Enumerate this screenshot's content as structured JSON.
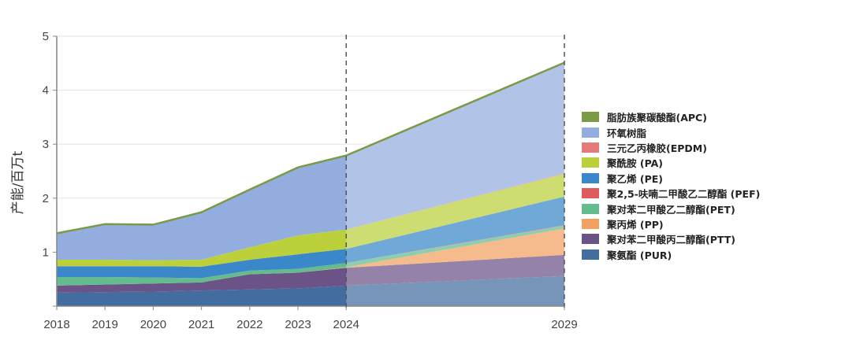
{
  "chart_data": {
    "type": "area",
    "stacked": true,
    "title": "",
    "xlabel": "",
    "ylabel": "产能/百万t",
    "x": [
      "2018",
      "2019",
      "2020",
      "2021",
      "2022",
      "2023",
      "2024",
      "2029"
    ],
    "ylim": [
      0,
      5
    ],
    "yticks": [
      "1",
      "2",
      "3",
      "4",
      "5"
    ],
    "grid": true,
    "legend_position": "right",
    "forecast_markers": [
      "2024",
      "2029"
    ],
    "series": [
      {
        "name": "聚氨酯 (PUR)",
        "color": "#426d9e",
        "values": [
          0.25,
          0.26,
          0.27,
          0.29,
          0.31,
          0.33,
          0.38,
          0.56
        ]
      },
      {
        "name": "聚对苯二甲酸丙二醇酯(PTT)",
        "color": "#6b5287",
        "values": [
          0.13,
          0.14,
          0.15,
          0.15,
          0.28,
          0.29,
          0.33,
          0.39
        ]
      },
      {
        "name": "聚丙烯 (PP)",
        "color": "#f2a160",
        "values": [
          0,
          0,
          0,
          0,
          0,
          0,
          0.01,
          0.49
        ]
      },
      {
        "name": "聚对苯二甲酸乙二醇酯(PET)",
        "color": "#64bc8e",
        "values": [
          0.16,
          0.14,
          0.11,
          0.08,
          0.07,
          0.07,
          0.08,
          0.05
        ]
      },
      {
        "name": "聚2,5-呋喃二甲酸乙二醇酯 (PEF)",
        "color": "#e05c5c",
        "values": [
          0,
          0,
          0,
          0,
          0,
          0,
          0,
          0.01
        ]
      },
      {
        "name": "聚乙烯 (PE)",
        "color": "#3a87c9",
        "values": [
          0.2,
          0.2,
          0.21,
          0.21,
          0.2,
          0.27,
          0.26,
          0.53
        ]
      },
      {
        "name": "聚酰胺 (PA)",
        "color": "#bcd03c",
        "values": [
          0.12,
          0.12,
          0.11,
          0.13,
          0.23,
          0.35,
          0.36,
          0.42
        ]
      },
      {
        "name": "三元乙丙橡胶(EPDM)",
        "color": "#e57a7a",
        "values": [
          0,
          0,
          0,
          0,
          0,
          0,
          0,
          0.01
        ]
      },
      {
        "name": "环氧树脂",
        "color": "#93aede",
        "values": [
          0.48,
          0.65,
          0.65,
          0.87,
          1.06,
          1.25,
          1.36,
          2.04
        ]
      },
      {
        "name": "脂肪族聚碳酸酯(APC)",
        "color": "#7a9a46",
        "values": [
          0.01,
          0.01,
          0.01,
          0.01,
          0.01,
          0.01,
          0.01,
          0.01
        ]
      }
    ]
  }
}
